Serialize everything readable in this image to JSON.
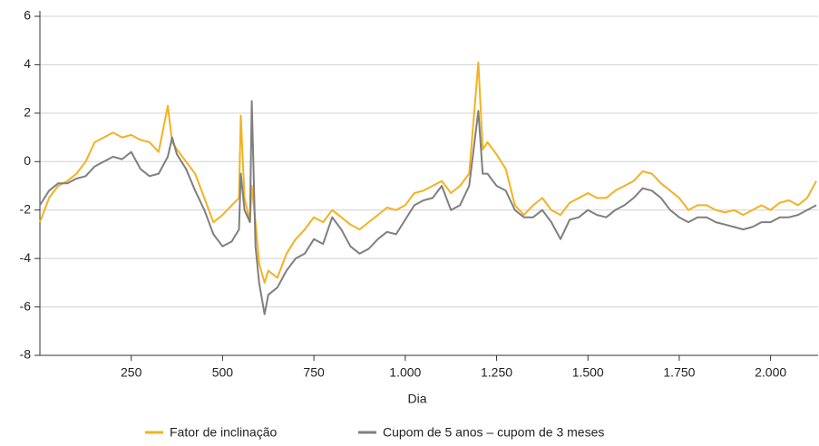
{
  "chart_data": {
    "type": "line",
    "x_label": "Dia",
    "x": [
      0,
      25,
      50,
      75,
      100,
      125,
      150,
      175,
      200,
      225,
      250,
      275,
      300,
      325,
      350,
      362,
      375,
      400,
      425,
      450,
      475,
      500,
      525,
      545,
      550,
      560,
      575,
      580,
      590,
      600,
      615,
      625,
      650,
      675,
      700,
      725,
      750,
      775,
      800,
      825,
      850,
      875,
      900,
      925,
      950,
      975,
      1000,
      1025,
      1050,
      1075,
      1100,
      1125,
      1150,
      1175,
      1200,
      1212,
      1225,
      1250,
      1275,
      1300,
      1325,
      1350,
      1375,
      1400,
      1425,
      1450,
      1475,
      1500,
      1525,
      1550,
      1575,
      1600,
      1625,
      1650,
      1675,
      1700,
      1725,
      1750,
      1775,
      1800,
      1825,
      1850,
      1875,
      1900,
      1925,
      1950,
      1975,
      2000,
      2025,
      2050,
      2075,
      2100,
      2125
    ],
    "series": [
      {
        "name": "Fator de inclinação",
        "color": "#f4b120",
        "values": [
          -2.5,
          -1.5,
          -1.0,
          -0.8,
          -0.5,
          0.0,
          0.8,
          1.0,
          1.2,
          1.0,
          1.1,
          0.9,
          0.8,
          0.4,
          2.3,
          0.8,
          0.5,
          0.0,
          -0.5,
          -1.5,
          -2.5,
          -2.2,
          -1.8,
          -1.5,
          1.9,
          -1.5,
          -2.5,
          -1.0,
          -2.5,
          -4.2,
          -5.0,
          -4.5,
          -4.8,
          -3.8,
          -3.2,
          -2.8,
          -2.3,
          -2.5,
          -2.0,
          -2.3,
          -2.6,
          -2.8,
          -2.5,
          -2.2,
          -1.9,
          -2.0,
          -1.8,
          -1.3,
          -1.2,
          -1.0,
          -0.8,
          -1.3,
          -1.0,
          -0.5,
          4.1,
          0.5,
          0.8,
          0.3,
          -0.3,
          -1.8,
          -2.2,
          -1.8,
          -1.5,
          -2.0,
          -2.2,
          -1.7,
          -1.5,
          -1.3,
          -1.5,
          -1.5,
          -1.2,
          -1.0,
          -0.8,
          -0.4,
          -0.5,
          -0.9,
          -1.2,
          -1.5,
          -2.0,
          -1.8,
          -1.8,
          -2.0,
          -2.1,
          -2.0,
          -2.2,
          -2.0,
          -1.8,
          -2.0,
          -1.7,
          -1.6,
          -1.8,
          -1.5,
          -0.8
        ]
      },
      {
        "name": "Cupom de 5 anos – cupom de 3 meses",
        "color": "#7f7f7f",
        "values": [
          -1.8,
          -1.2,
          -0.9,
          -0.9,
          -0.7,
          -0.6,
          -0.2,
          0.0,
          0.2,
          0.1,
          0.4,
          -0.3,
          -0.6,
          -0.5,
          0.2,
          1.0,
          0.3,
          -0.3,
          -1.2,
          -2.0,
          -3.0,
          -3.5,
          -3.3,
          -2.8,
          -0.5,
          -2.0,
          -2.5,
          2.5,
          -3.5,
          -5.0,
          -6.3,
          -5.5,
          -5.2,
          -4.5,
          -4.0,
          -3.8,
          -3.2,
          -3.4,
          -2.3,
          -2.8,
          -3.5,
          -3.8,
          -3.6,
          -3.2,
          -2.9,
          -3.0,
          -2.4,
          -1.8,
          -1.6,
          -1.5,
          -1.0,
          -2.0,
          -1.8,
          -1.0,
          2.1,
          -0.5,
          -0.5,
          -1.0,
          -1.2,
          -2.0,
          -2.3,
          -2.3,
          -2.0,
          -2.5,
          -3.2,
          -2.4,
          -2.3,
          -2.0,
          -2.2,
          -2.3,
          -2.0,
          -1.8,
          -1.5,
          -1.1,
          -1.2,
          -1.5,
          -2.0,
          -2.3,
          -2.5,
          -2.3,
          -2.3,
          -2.5,
          -2.6,
          -2.7,
          -2.8,
          -2.7,
          -2.5,
          -2.5,
          -2.3,
          -2.3,
          -2.2,
          -2.0,
          -1.8
        ]
      }
    ],
    "xlim": [
      0,
      2130
    ],
    "xticks": [
      250,
      500,
      750,
      {
        "value": 1000,
        "label": "1.000"
      },
      {
        "value": 1250,
        "label": "1.250"
      },
      {
        "value": 1500,
        "label": "1.500"
      },
      {
        "value": 1750,
        "label": "1.750"
      },
      {
        "value": 2000,
        "label": "2.000"
      }
    ],
    "ylim": [
      -8,
      6
    ],
    "yticks": [
      -8,
      -6,
      -4,
      -2,
      0,
      2,
      4,
      6
    ],
    "grid": true
  }
}
